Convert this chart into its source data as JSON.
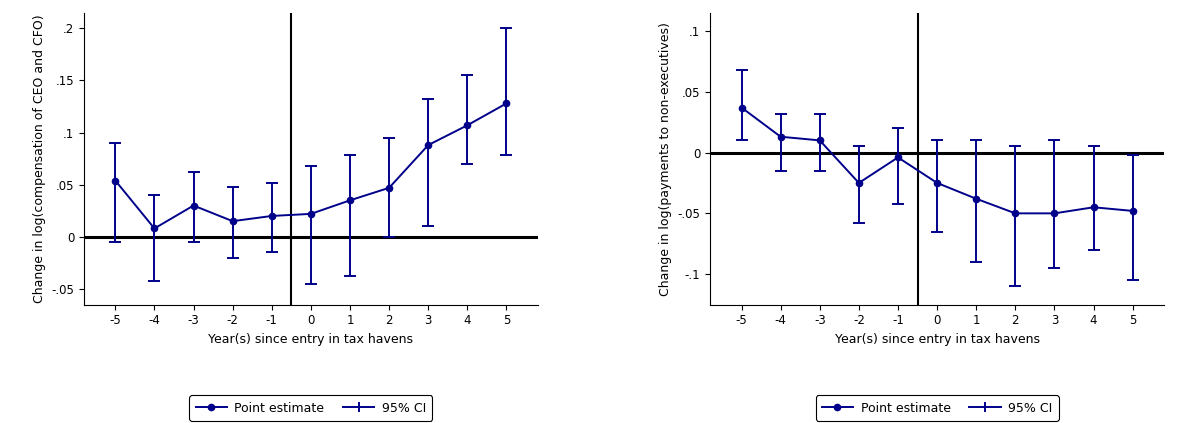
{
  "chart1": {
    "ylabel": "Change in log(compensation of CEO and CFO)",
    "xlabel": "Year(s) since entry in tax havens",
    "x": [
      -5,
      -4,
      -3,
      -2,
      -1,
      0,
      1,
      2,
      3,
      4,
      5
    ],
    "y": [
      0.054,
      0.008,
      0.03,
      0.015,
      0.02,
      0.022,
      0.035,
      0.047,
      0.088,
      0.107,
      0.128
    ],
    "ci_low": [
      -0.005,
      -0.042,
      -0.005,
      -0.02,
      -0.015,
      -0.045,
      -0.038,
      0.0,
      0.01,
      0.07,
      0.078
    ],
    "ci_high": [
      0.09,
      0.04,
      0.062,
      0.048,
      0.052,
      0.068,
      0.078,
      0.095,
      0.132,
      0.155,
      0.2
    ],
    "ylim": [
      -0.065,
      0.215
    ],
    "yticks": [
      -0.05,
      0.0,
      0.05,
      0.1,
      0.15,
      0.2
    ],
    "ytick_labels": [
      "-.05",
      "0",
      ".05",
      ".1",
      ".15",
      ".2"
    ],
    "vline_x": -0.5,
    "hline_y": 0
  },
  "chart2": {
    "ylabel": "Change in log(payments to non-executives)",
    "xlabel": "Year(s) since entry in tax havens",
    "x": [
      -5,
      -4,
      -3,
      -2,
      -1,
      0,
      1,
      2,
      3,
      4,
      5
    ],
    "y": [
      0.037,
      0.013,
      0.01,
      -0.025,
      -0.004,
      -0.025,
      -0.038,
      -0.05,
      -0.05,
      -0.045,
      -0.048
    ],
    "ci_low": [
      0.01,
      -0.015,
      -0.015,
      -0.058,
      -0.042,
      -0.065,
      -0.09,
      -0.11,
      -0.095,
      -0.08,
      -0.105
    ],
    "ci_high": [
      0.068,
      0.032,
      0.032,
      0.005,
      0.02,
      0.01,
      0.01,
      0.005,
      0.01,
      0.005,
      -0.002
    ],
    "ylim": [
      -0.125,
      0.115
    ],
    "yticks": [
      -0.1,
      -0.05,
      0.0,
      0.05,
      0.1
    ],
    "ytick_labels": [
      "-.1",
      "-.05",
      "0",
      ".05",
      ".1"
    ],
    "vline_x": -0.5,
    "hline_y": 0
  },
  "line_color": "#00008B",
  "marker": "o",
  "markersize": 4.5,
  "linewidth": 1.4,
  "capsize": 4,
  "capthick": 1.4,
  "elinewidth": 1.4,
  "legend_label_point": "Point estimate",
  "legend_label_ci": "95% CI",
  "background_color": "#ffffff",
  "tick_fontsize": 8.5,
  "label_fontsize": 9,
  "legend_fontsize": 9
}
